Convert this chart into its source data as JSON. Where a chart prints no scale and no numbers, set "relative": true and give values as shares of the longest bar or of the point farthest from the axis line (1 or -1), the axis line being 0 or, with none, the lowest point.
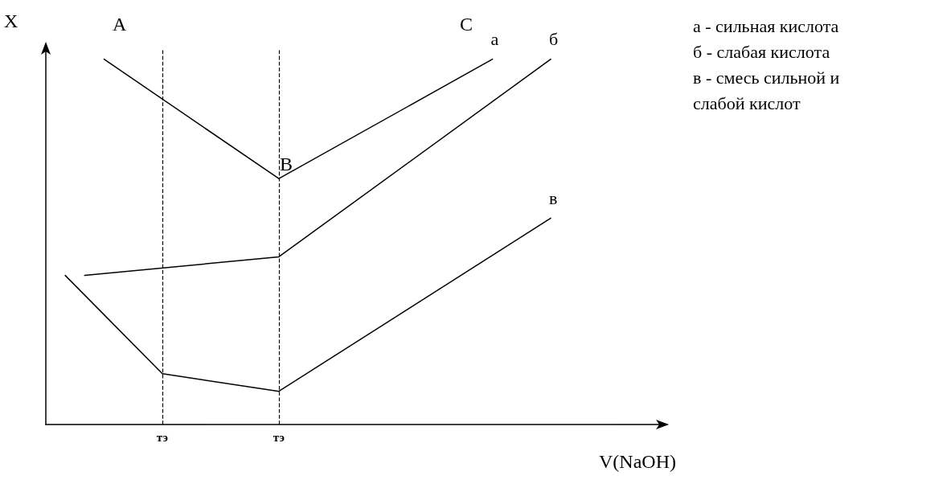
{
  "chart_data": {
    "type": "line",
    "relative": true,
    "xlabel": "V(NaOH)",
    "ylabel": "X",
    "ylim": [
      0,
      1.03
    ],
    "grid": false,
    "legend": false,
    "marker": "none",
    "line_style": "solid",
    "categories": [
      null,
      null,
      null,
      null,
      null,
      null,
      null,
      null,
      null,
      null,
      null,
      null,
      null,
      null,
      null,
      null,
      null,
      null,
      null,
      null,
      null,
      null,
      null,
      null,
      null,
      null,
      null,
      null,
      null,
      null,
      null,
      null,
      null
    ],
    "series": [
      {
        "name": "а",
        "color": "#000000",
        "values": [
          null,
          null,
          null,
          1,
          null,
          null,
          null,
          null,
          null,
          null,
          null,
          null,
          0.673,
          null,
          null,
          null,
          null,
          null,
          null,
          null,
          null,
          null,
          null,
          1,
          null,
          null,
          null,
          null,
          null,
          null,
          null,
          null,
          null
        ]
      },
      {
        "name": "б",
        "color": "#000000",
        "values": [
          null,
          null,
          0.408,
          null,
          null,
          null,
          null,
          null,
          null,
          null,
          null,
          null,
          0.459,
          null,
          null,
          null,
          null,
          null,
          null,
          null,
          null,
          null,
          null,
          null,
          null,
          null,
          1,
          null,
          null,
          null,
          null,
          null,
          null
        ]
      },
      {
        "name": "в",
        "color": "#000000",
        "values": [
          null,
          0.408,
          null,
          null,
          null,
          null,
          0.139,
          null,
          null,
          null,
          null,
          null,
          0.091,
          null,
          null,
          null,
          null,
          null,
          null,
          null,
          null,
          null,
          null,
          null,
          null,
          null,
          0.565,
          null,
          null,
          null,
          null,
          null,
          null
        ]
      }
    ],
    "annotations": [
      "A",
      "B",
      "C",
      "а - сильная кислота",
      "б - слабая кислота",
      "в - смесь сильной и\nслабой кислот",
      "тэ",
      "тэ"
    ]
  }
}
